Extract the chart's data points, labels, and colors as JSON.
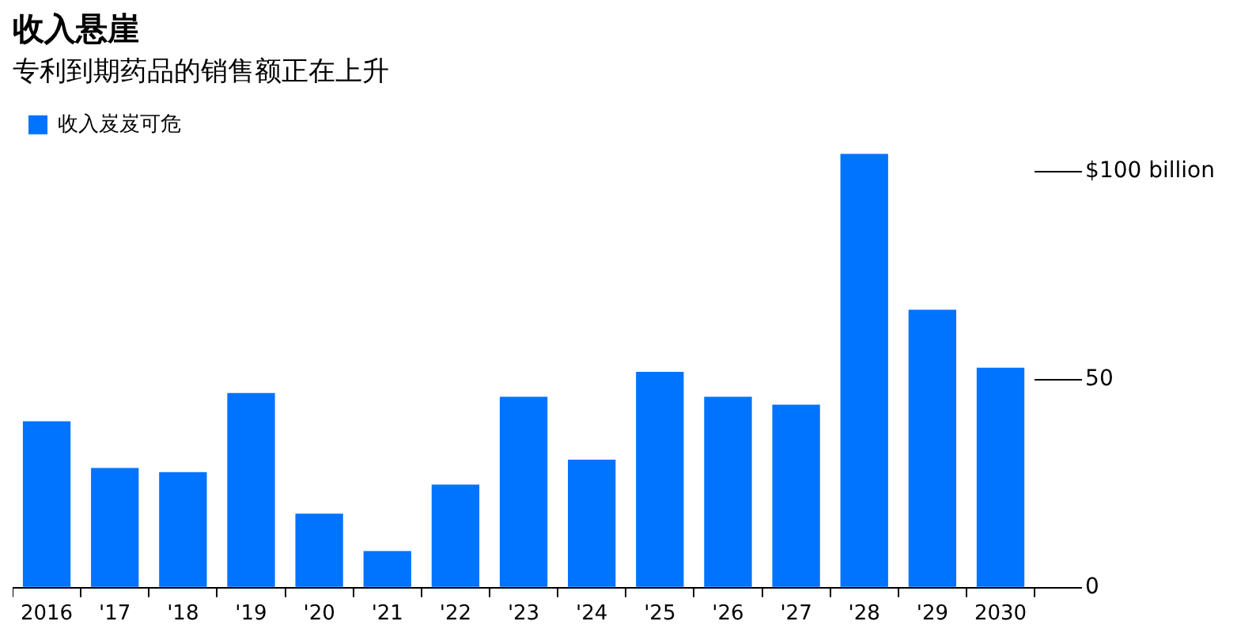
{
  "chart_data": {
    "type": "bar",
    "title": "收入悬崖",
    "subtitle": "专利到期药品的销售额正在上升",
    "categories": [
      "2016",
      "'17",
      "'18",
      "'19",
      "'20",
      "'21",
      "'22",
      "'23",
      "'24",
      "'25",
      "'26",
      "'27",
      "'28",
      "'29",
      "2030"
    ],
    "series": [
      {
        "name": "收入岌岌可危",
        "color": "#0073ff",
        "values": [
          40,
          28.8,
          27.8,
          46.8,
          17.8,
          8.8,
          24.8,
          45.9,
          30.8,
          51.9,
          45.9,
          44,
          104.3,
          66.8,
          52.9
        ]
      }
    ],
    "ylim": [
      0,
      105
    ],
    "yticks": [
      0,
      50,
      {
        "value": 100,
        "label": "$100 billion"
      }
    ],
    "grid": false,
    "legend": "top left"
  }
}
